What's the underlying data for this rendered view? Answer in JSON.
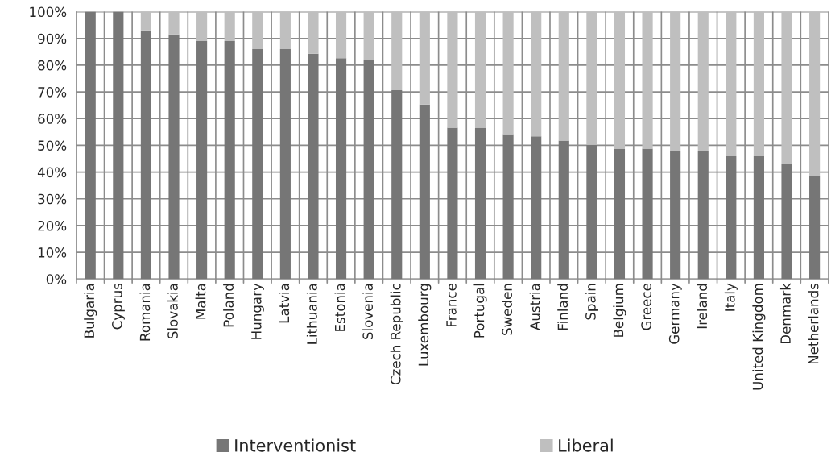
{
  "chart_data": {
    "type": "bar",
    "stacked": true,
    "categories": [
      "Bulgaria",
      "Cyprus",
      "Romania",
      "Slovakia",
      "Malta",
      "Poland",
      "Hungary",
      "Latvia",
      "Lithuania",
      "Estonia",
      "Slovenia",
      "Czech Republic",
      "Luxembourg",
      "France",
      "Portugal",
      "Sweden",
      "Austria",
      "Finland",
      "Spain",
      "Belgium",
      "Greece",
      "Germany",
      "Ireland",
      "Italy",
      "United Kingdom",
      "Denmark",
      "Netherlands"
    ],
    "series": [
      {
        "name": "Interventionist",
        "color": "#767676",
        "values": [
          100,
          100,
          93,
          91.5,
          89,
          89,
          86,
          86,
          84.3,
          82.6,
          81.8,
          70.6,
          65.3,
          56.6,
          56.6,
          54.2,
          53.4,
          51.8,
          50.2,
          48.8,
          48.8,
          47.8,
          47.8,
          46.2,
          46.2,
          43.1,
          38.4
        ]
      },
      {
        "name": "Liberal",
        "color": "#bfbfbf",
        "values": [
          0,
          0,
          7,
          8.5,
          11,
          11,
          14,
          14,
          15.7,
          17.4,
          18.2,
          29.4,
          34.7,
          43.4,
          43.4,
          45.8,
          46.6,
          48.2,
          49.8,
          51.2,
          51.2,
          52.2,
          52.2,
          53.8,
          53.8,
          56.9,
          61.6
        ]
      }
    ],
    "ylim": [
      0,
      100
    ],
    "yticks": [
      {
        "value": 0,
        "label": "0%"
      },
      {
        "value": 10,
        "label": "10%"
      },
      {
        "value": 20,
        "label": "20%"
      },
      {
        "value": 30,
        "label": "30%"
      },
      {
        "value": 40,
        "label": "40%"
      },
      {
        "value": 50,
        "label": "50%"
      },
      {
        "value": 60,
        "label": "60%"
      },
      {
        "value": 70,
        "label": "70%"
      },
      {
        "value": 80,
        "label": "80%"
      },
      {
        "value": 90,
        "label": "90%"
      },
      {
        "value": 100,
        "label": "100%"
      }
    ],
    "grid": true,
    "legend": "bottom"
  }
}
